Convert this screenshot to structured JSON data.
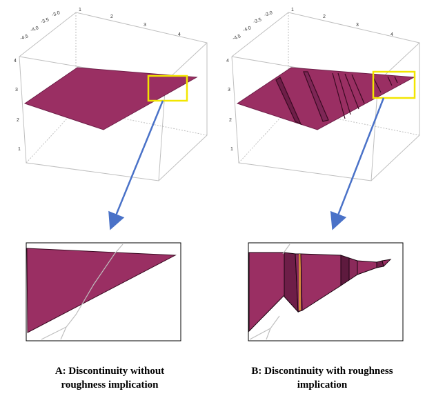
{
  "colors": {
    "surface": "#9a2f63",
    "surface_dark": "#6e1e48",
    "highlight_box": "#f2e600",
    "arrow": "#4a72c8",
    "frame": "#bfbfbf"
  },
  "panel_a": {
    "ticks_x": [
      "-3.0",
      "-3.5",
      "-4.0",
      "-4.5"
    ],
    "ticks_y": [
      "1",
      "2",
      "3",
      "4"
    ],
    "ticks_z": [
      "1",
      "2",
      "3",
      "4"
    ],
    "caption_line1": "A: Discontinuity without",
    "caption_line2": "roughness implication"
  },
  "panel_b": {
    "ticks_x": [
      "-3.0",
      "-3.5",
      "-4.0",
      "-4.5"
    ],
    "ticks_y": [
      "1",
      "2",
      "3",
      "4"
    ],
    "ticks_z": [
      "1",
      "2",
      "3",
      "4"
    ],
    "caption_line1": "B: Discontinuity with roughness",
    "caption_line2": "implication"
  }
}
